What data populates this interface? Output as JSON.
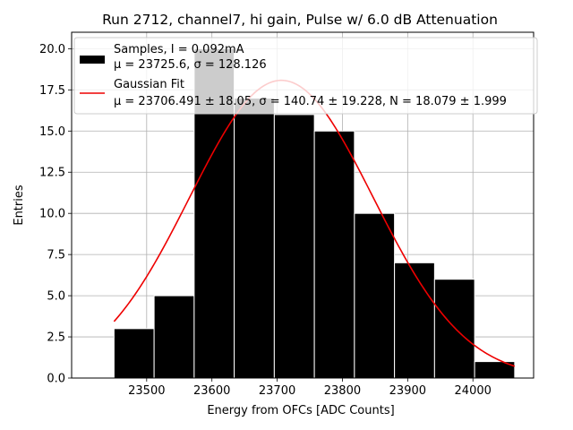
{
  "chart_data": {
    "type": "bar",
    "title": "Run 2712, channel7, hi gain, Pulse w/ 6.0 dB Attenuation",
    "xlabel": "Energy from OFCs [ADC Counts]",
    "ylabel": "Entries",
    "xlim": [
      23385,
      24093
    ],
    "ylim": [
      0,
      21
    ],
    "xticks": [
      23500,
      23600,
      23700,
      23800,
      23900,
      24000
    ],
    "yticks": [
      0.0,
      2.5,
      5.0,
      7.5,
      10.0,
      12.5,
      15.0,
      17.5,
      20.0
    ],
    "xtick_labels": [
      "23500",
      "23600",
      "23700",
      "23800",
      "23900",
      "24000"
    ],
    "ytick_labels": [
      "0.0",
      "2.5",
      "5.0",
      "7.5",
      "10.0",
      "12.5",
      "15.0",
      "17.5",
      "20.0"
    ],
    "grid": true,
    "legend_position": "top-right",
    "histogram": {
      "bin_edges": [
        23450,
        23511.4,
        23572.8,
        23634.2,
        23695.6,
        23757.0,
        23818.4,
        23879.8,
        23941.2,
        24002.6,
        24064
      ],
      "counts": [
        3,
        5,
        20,
        17,
        16,
        15,
        10,
        7,
        6,
        1
      ],
      "color": "#000000",
      "edgecolor": "#ffffff"
    },
    "fit": {
      "mu": 23706.491,
      "sigma": 140.74,
      "x_range": [
        23450,
        24064
      ],
      "peak": 18.079,
      "color": "#ee0000"
    },
    "legend": [
      {
        "kind": "patch",
        "line1": "Samples, I = 0.092mA",
        "line2_mu": "μ = 23725.6, ",
        "line2_sigma": "σ = 128.126"
      },
      {
        "kind": "line",
        "line1": "Gaussian Fit",
        "line2_mu": "μ = 23706.491 ± 18.05, ",
        "line2_sigma": "σ = 140.74 ± 19.228, ",
        "line2_n": "N = 18.079 ± 1.999"
      }
    ]
  }
}
